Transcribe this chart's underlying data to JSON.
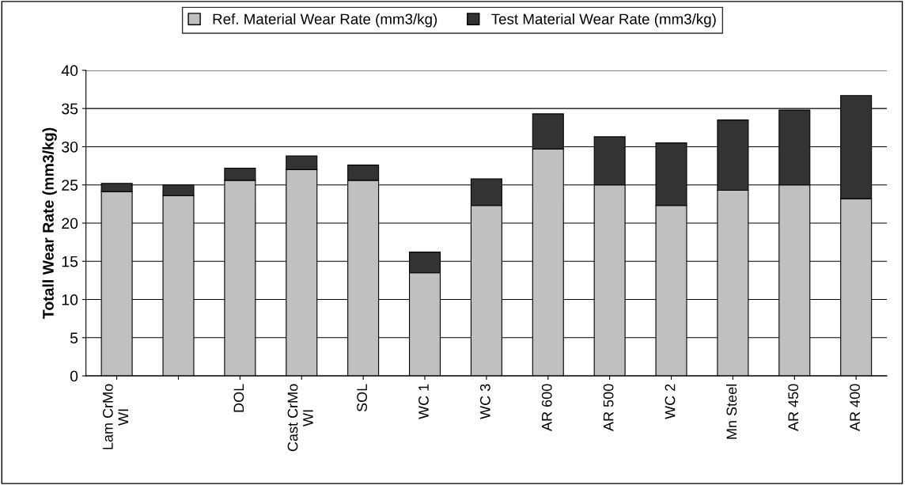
{
  "chart_data": {
    "type": "bar",
    "stacked": true,
    "ylabel": "Totall Wear Rate (mm3/kg)",
    "categories": [
      "Lam CrMo\nWI",
      null,
      "DOL",
      "Cast CrMo\nWI",
      "SOL",
      "WC 1",
      "WC 3",
      "AR 600",
      "AR 500",
      "WC 2",
      "Mn Steel",
      "AR 450",
      "AR 400"
    ],
    "series": [
      {
        "name": "Ref. Material Wear Rate (mm3/kg)",
        "color": "#c0c0c0",
        "values": [
          24.1,
          23.6,
          25.6,
          27.0,
          25.6,
          13.5,
          22.3,
          29.7,
          25.0,
          22.3,
          24.3,
          25.0,
          23.2
        ]
      },
      {
        "name": "Test Material Wear Rate (mm3/kg)",
        "color": "#333333",
        "values": [
          1.1,
          1.4,
          1.6,
          1.8,
          2.0,
          2.7,
          3.5,
          4.6,
          6.3,
          8.2,
          9.2,
          9.8,
          13.5
        ]
      }
    ],
    "ylim": [
      0,
      40
    ],
    "yticks": [
      0,
      5,
      10,
      15,
      20,
      25,
      30,
      35,
      40
    ],
    "grid": "y",
    "legend": "top"
  }
}
